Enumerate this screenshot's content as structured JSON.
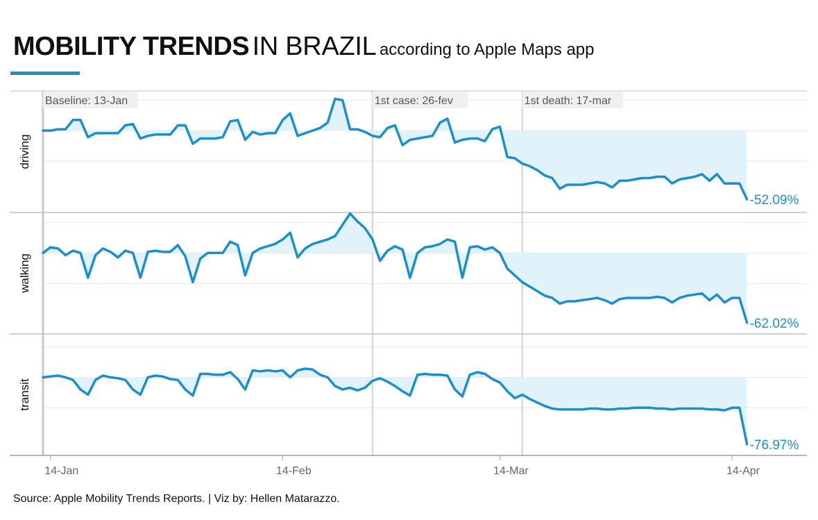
{
  "title": {
    "bold": "MOBILITY TRENDS",
    "normal": "IN BRAZIL",
    "sub": "according to Apple Maps app"
  },
  "source": "Source: Apple Mobility Trends Reports. | Viz by: Hellen Matarazzo.",
  "colors": {
    "line": "#1a8fd0",
    "fill": "#e1f2fa",
    "accent": "#1a8fd0",
    "annotation_line": "#d9d9d9",
    "grid": "#e8e8e8"
  },
  "chart_data": {
    "type": "line",
    "x_start": "2020-01-13",
    "x_end": "2020-04-14",
    "x_ticks": [
      {
        "label": "14-Jan",
        "date": "2020-01-14"
      },
      {
        "label": "14-Feb",
        "date": "2020-02-14"
      },
      {
        "label": "14-Mar",
        "date": "2020-03-14"
      },
      {
        "label": "14-Apr",
        "date": "2020-04-14"
      }
    ],
    "annotations": [
      {
        "label": "Baseline: 13-Jan",
        "date": "2020-01-13"
      },
      {
        "label": "1st case: 26-fev",
        "date": "2020-02-26"
      },
      {
        "label": "1st death: 17-mar",
        "date": "2020-03-17"
      }
    ],
    "baseline": 100,
    "series": [
      {
        "name": "driving",
        "end_label": "-52.09%",
        "ylim": [
          38,
          130
        ],
        "values": [
          100,
          100,
          101,
          101,
          108,
          108,
          95,
          98,
          98,
          98,
          98,
          104,
          105,
          94,
          96,
          97,
          97,
          97,
          104,
          104,
          90,
          94,
          94,
          94,
          95,
          107,
          108,
          93,
          99,
          97,
          98,
          98,
          108,
          113,
          96,
          98,
          100,
          102,
          106,
          124,
          123,
          101,
          101,
          99,
          96,
          95,
          102,
          104,
          89,
          93,
          94,
          95,
          96,
          106,
          109,
          91,
          93,
          94,
          94,
          92,
          101,
          103,
          80,
          79,
          75,
          73,
          70,
          66,
          64,
          56,
          59,
          59,
          59,
          60,
          61,
          60,
          57,
          62,
          62,
          63,
          64,
          64,
          65,
          65,
          60,
          63,
          64,
          65,
          67,
          62,
          67,
          60,
          60,
          60,
          48
        ]
      },
      {
        "name": "walking",
        "end_label": "-62.02%",
        "ylim": [
          28,
          136
        ],
        "values": [
          100,
          105,
          104,
          98,
          102,
          100,
          78,
          98,
          104,
          101,
          96,
          102,
          100,
          78,
          101,
          102,
          101,
          101,
          107,
          97,
          74,
          95,
          100,
          100,
          100,
          110,
          107,
          80,
          100,
          104,
          106,
          108,
          112,
          118,
          96,
          104,
          108,
          110,
          112,
          115,
          125,
          135,
          128,
          122,
          112,
          93,
          102,
          106,
          103,
          78,
          100,
          105,
          106,
          108,
          112,
          110,
          78,
          105,
          106,
          103,
          105,
          100,
          86,
          80,
          74,
          70,
          66,
          62,
          60,
          55,
          57,
          57,
          58,
          59,
          60,
          58,
          55,
          59,
          60,
          60,
          60,
          60,
          61,
          60,
          56,
          60,
          62,
          63,
          64,
          58,
          63,
          56,
          60,
          60,
          38
        ]
      },
      {
        "name": "transit",
        "end_label": "-76.97%",
        "ylim": [
          10,
          150
        ],
        "values": [
          100,
          101,
          102,
          100,
          97,
          86,
          80,
          97,
          102,
          100,
          99,
          97,
          86,
          80,
          100,
          102,
          101,
          98,
          97,
          86,
          79,
          104,
          104,
          103,
          103,
          106,
          98,
          86,
          108,
          107,
          108,
          107,
          108,
          100,
          108,
          110,
          109,
          103,
          100,
          90,
          86,
          88,
          85,
          88,
          96,
          99,
          95,
          90,
          84,
          79,
          103,
          104,
          103,
          103,
          102,
          86,
          78,
          103,
          106,
          104,
          98,
          94,
          84,
          76,
          80,
          75,
          71,
          67,
          64,
          63,
          63,
          63,
          63,
          64,
          64,
          63,
          63,
          64,
          64,
          65,
          65,
          65,
          64,
          64,
          63,
          64,
          64,
          64,
          64,
          63,
          63,
          62,
          65,
          65,
          23
        ]
      }
    ]
  }
}
